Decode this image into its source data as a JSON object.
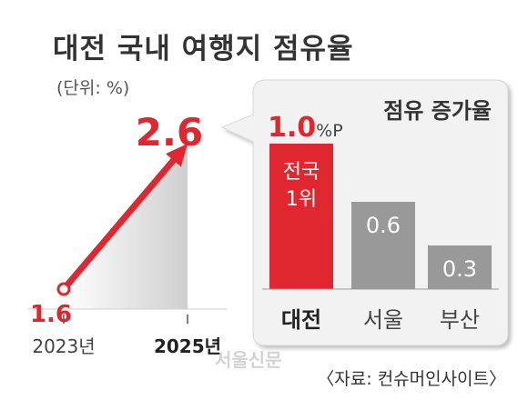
{
  "title": "대전 국내 여행지 점유율",
  "unit": "(단위: %)",
  "source": "〈자료: 컨슈머인사이트〉",
  "watermark": "서울신문",
  "colors": {
    "red": "#e0262e",
    "gray": "#999999",
    "dark": "#333333",
    "box": "#f2f2f2"
  },
  "chart_data": [
    {
      "type": "line",
      "x": [
        "2023년",
        "2025년"
      ],
      "values": [
        1.6,
        2.6
      ],
      "value_labels": [
        "1.6",
        "2.6"
      ]
    },
    {
      "type": "bar",
      "title": "점유 증가율",
      "categories": [
        "대전",
        "서울",
        "부산"
      ],
      "values": [
        1.0,
        0.6,
        0.3
      ],
      "value_labels": [
        "1.0",
        "0.6",
        "0.3"
      ],
      "value_unit": "%P",
      "bar_note": [
        "전국",
        "1위"
      ],
      "colors": [
        "#e0262e",
        "#999999",
        "#999999"
      ]
    }
  ]
}
